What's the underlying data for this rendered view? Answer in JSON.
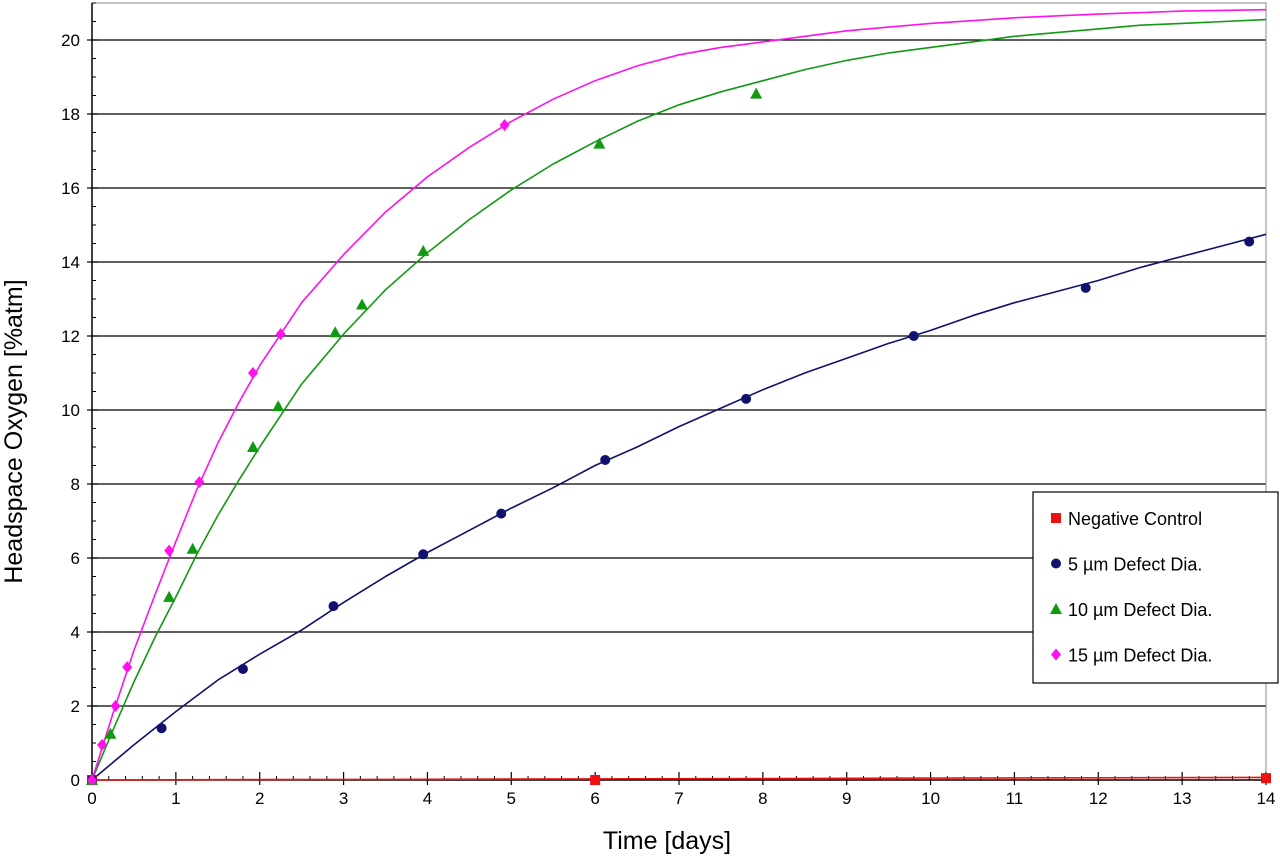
{
  "chart_data": {
    "type": "scatter",
    "xlabel": "Time [days]",
    "ylabel": "Headspace Oxygen [%atm]",
    "xlim": [
      0,
      14
    ],
    "ylim": [
      0,
      21
    ],
    "x_ticks": [
      "0",
      "1",
      "2",
      "3",
      "4",
      "5",
      "6",
      "7",
      "8",
      "9",
      "10",
      "11",
      "12",
      "13",
      "14"
    ],
    "y_ticks": [
      "0",
      "2",
      "4",
      "6",
      "8",
      "10",
      "12",
      "14",
      "16",
      "18",
      "20"
    ],
    "grid": "horizontal",
    "legend_position": "right",
    "series": [
      {
        "name": "Negative Control",
        "marker": "square",
        "color": "#ee1111",
        "points": [
          [
            0,
            0
          ],
          [
            6,
            0
          ],
          [
            14,
            0.05
          ]
        ],
        "fit_curve": [
          [
            0,
            0
          ],
          [
            2,
            0.01
          ],
          [
            4,
            0.02
          ],
          [
            6,
            0.03
          ],
          [
            8,
            0.04
          ],
          [
            10,
            0.05
          ],
          [
            12,
            0.06
          ],
          [
            14,
            0.07
          ]
        ]
      },
      {
        "name": "5 µm Defect Dia.",
        "marker": "circle",
        "color": "#10106e",
        "points": [
          [
            0,
            0
          ],
          [
            0.83,
            1.4
          ],
          [
            1.8,
            3.0
          ],
          [
            2.88,
            4.7
          ],
          [
            3.95,
            6.1
          ],
          [
            4.88,
            7.2
          ],
          [
            6.12,
            8.65
          ],
          [
            7.8,
            10.3
          ],
          [
            9.8,
            12.0
          ],
          [
            11.85,
            13.3
          ],
          [
            13.8,
            14.55
          ]
        ],
        "fit_curve": [
          [
            0,
            0
          ],
          [
            0.5,
            0.95
          ],
          [
            1,
            1.85
          ],
          [
            1.5,
            2.7
          ],
          [
            2,
            3.4
          ],
          [
            2.5,
            4.05
          ],
          [
            3,
            4.8
          ],
          [
            3.5,
            5.5
          ],
          [
            4,
            6.15
          ],
          [
            4.5,
            6.75
          ],
          [
            5,
            7.35
          ],
          [
            5.5,
            7.9
          ],
          [
            6,
            8.5
          ],
          [
            6.5,
            9.0
          ],
          [
            7,
            9.55
          ],
          [
            7.5,
            10.05
          ],
          [
            8,
            10.55
          ],
          [
            8.5,
            11.0
          ],
          [
            9,
            11.4
          ],
          [
            9.5,
            11.8
          ],
          [
            10,
            12.15
          ],
          [
            10.5,
            12.55
          ],
          [
            11,
            12.9
          ],
          [
            11.5,
            13.2
          ],
          [
            12,
            13.5
          ],
          [
            12.5,
            13.85
          ],
          [
            13,
            14.15
          ],
          [
            13.5,
            14.45
          ],
          [
            14,
            14.75
          ]
        ]
      },
      {
        "name": "10 µm Defect Dia.",
        "marker": "triangle",
        "color": "#119911",
        "points": [
          [
            0,
            0
          ],
          [
            0.22,
            1.25
          ],
          [
            0.92,
            4.95
          ],
          [
            1.2,
            6.25
          ],
          [
            1.92,
            9.0
          ],
          [
            2.22,
            10.1
          ],
          [
            2.9,
            12.1
          ],
          [
            3.22,
            12.85
          ],
          [
            3.95,
            14.3
          ],
          [
            6.05,
            17.2
          ],
          [
            7.92,
            18.55
          ]
        ],
        "fit_curve": [
          [
            0,
            0
          ],
          [
            0.25,
            1.35
          ],
          [
            0.5,
            2.65
          ],
          [
            0.75,
            3.85
          ],
          [
            1,
            4.95
          ],
          [
            1.25,
            6.1
          ],
          [
            1.5,
            7.15
          ],
          [
            1.75,
            8.1
          ],
          [
            2,
            9.0
          ],
          [
            2.5,
            10.7
          ],
          [
            3,
            12.05
          ],
          [
            3.5,
            13.25
          ],
          [
            4,
            14.25
          ],
          [
            4.5,
            15.15
          ],
          [
            5,
            15.95
          ],
          [
            5.5,
            16.65
          ],
          [
            6,
            17.25
          ],
          [
            6.5,
            17.8
          ],
          [
            7,
            18.25
          ],
          [
            7.5,
            18.6
          ],
          [
            8,
            18.9
          ],
          [
            8.5,
            19.2
          ],
          [
            9,
            19.45
          ],
          [
            9.5,
            19.65
          ],
          [
            10,
            19.8
          ],
          [
            10.5,
            19.95
          ],
          [
            11,
            20.1
          ],
          [
            11.5,
            20.2
          ],
          [
            12,
            20.3
          ],
          [
            12.5,
            20.4
          ],
          [
            13,
            20.45
          ],
          [
            13.5,
            20.5
          ],
          [
            14,
            20.55
          ]
        ]
      },
      {
        "name": "15 µm Defect Dia.",
        "marker": "diamond",
        "color": "#ff11ee",
        "points": [
          [
            0,
            0
          ],
          [
            0.12,
            0.95
          ],
          [
            0.28,
            2.0
          ],
          [
            0.42,
            3.05
          ],
          [
            0.92,
            6.2
          ],
          [
            1.28,
            8.05
          ],
          [
            1.92,
            11.0
          ],
          [
            2.25,
            12.05
          ],
          [
            4.92,
            17.7
          ]
        ],
        "fit_curve": [
          [
            0,
            0
          ],
          [
            0.25,
            1.8
          ],
          [
            0.5,
            3.5
          ],
          [
            0.75,
            5.0
          ],
          [
            1,
            6.45
          ],
          [
            1.25,
            7.85
          ],
          [
            1.5,
            9.1
          ],
          [
            1.75,
            10.2
          ],
          [
            2,
            11.2
          ],
          [
            2.5,
            12.9
          ],
          [
            3,
            14.2
          ],
          [
            3.5,
            15.35
          ],
          [
            4,
            16.3
          ],
          [
            4.5,
            17.1
          ],
          [
            5,
            17.8
          ],
          [
            5.5,
            18.4
          ],
          [
            6,
            18.9
          ],
          [
            6.5,
            19.3
          ],
          [
            7,
            19.6
          ],
          [
            7.5,
            19.8
          ],
          [
            8,
            19.95
          ],
          [
            8.5,
            20.1
          ],
          [
            9,
            20.25
          ],
          [
            10,
            20.45
          ],
          [
            11,
            20.6
          ],
          [
            12,
            20.7
          ],
          [
            13,
            20.78
          ],
          [
            14,
            20.82
          ]
        ]
      }
    ]
  }
}
